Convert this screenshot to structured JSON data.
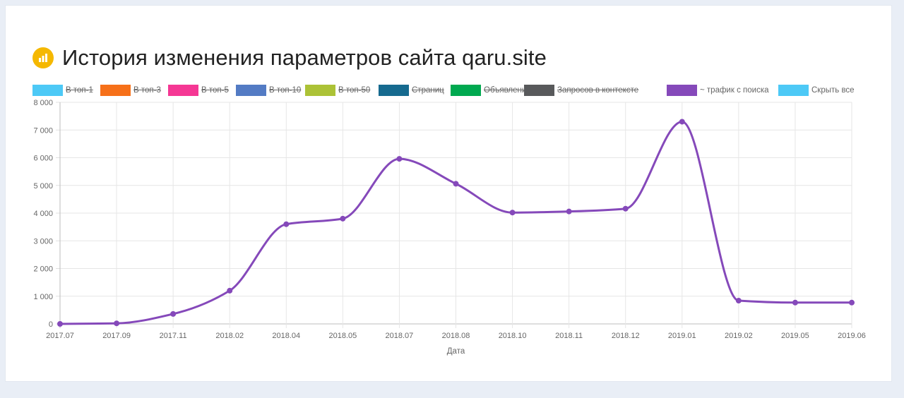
{
  "header": {
    "title": "История изменения параметров сайта qaru.site",
    "icon": "bar-chart-icon",
    "icon_color": "#f5b800"
  },
  "legend": [
    {
      "label": "В топ-1",
      "color": "#4dc9f6",
      "hidden": true
    },
    {
      "label": "В топ-3",
      "color": "#f67019",
      "hidden": true
    },
    {
      "label": "В топ-5",
      "color": "#f53794",
      "hidden": true
    },
    {
      "label": "В топ-10",
      "color": "#537bc4",
      "hidden": true
    },
    {
      "label": "В топ-50",
      "color": "#acc236",
      "hidden": true
    },
    {
      "label": "Страниц",
      "color": "#166a8f",
      "hidden": true
    },
    {
      "label": "Объявлений",
      "color": "#00a950",
      "hidden": true
    },
    {
      "label": "Запросов в контексте",
      "color": "#58595b",
      "hidden": true
    },
    {
      "label": "~ трафик с поиска",
      "color": "#8549ba",
      "hidden": false
    },
    {
      "label": "Скрыть все",
      "color": "#4dc9f6",
      "hidden": false
    }
  ],
  "chart_data": {
    "type": "line",
    "x": [
      "2017.07",
      "2017.09",
      "2017.11",
      "2018.02",
      "2018.04",
      "2018.05",
      "2018.07",
      "2018.08",
      "2018.10",
      "2018.11",
      "2018.12",
      "2019.01",
      "2019.02",
      "2019.05",
      "2019.06"
    ],
    "series": [
      {
        "name": "~ трафик с поиска",
        "color": "#8549ba",
        "values": [
          0,
          20,
          360,
          1200,
          3600,
          3800,
          5960,
          5060,
          4020,
          4060,
          4160,
          7300,
          840,
          770,
          770
        ]
      }
    ],
    "ylim": [
      0,
      8000
    ],
    "yticks": [
      "0",
      "1 000",
      "2 000",
      "3 000",
      "4 000",
      "5 000",
      "6 000",
      "7 000",
      "8 000"
    ],
    "xlabel": "Дата",
    "ylabel": "",
    "grid": true,
    "smooth": true
  }
}
